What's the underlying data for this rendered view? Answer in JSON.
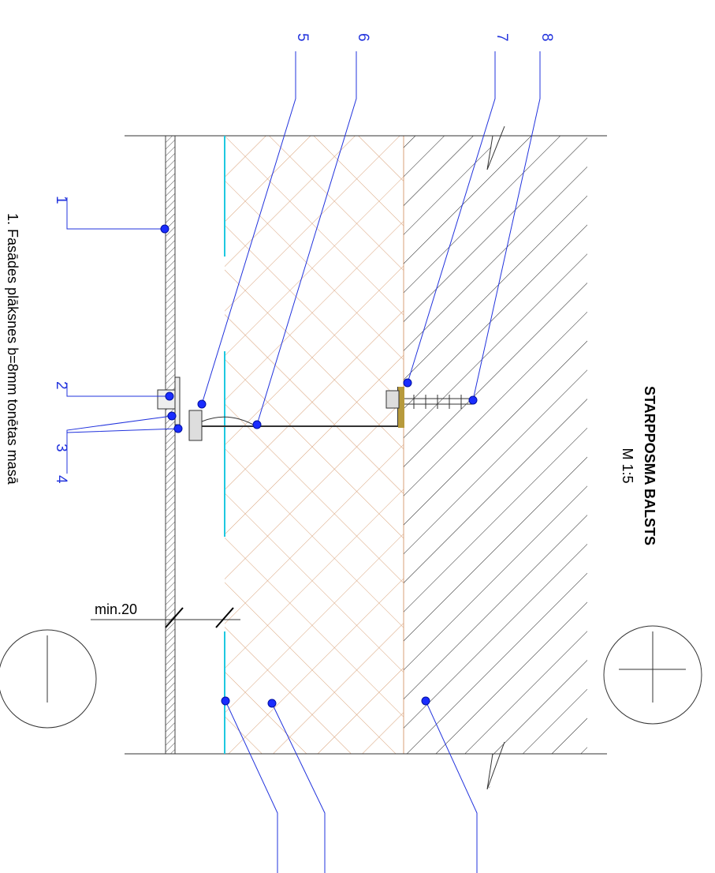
{
  "title": "STARPPOSMA BALSTS",
  "scale": "M 1:5",
  "dimension": "min.20",
  "note": "1. Fasādes plāksnes b=8mm tonētas masā",
  "callouts": [
    "1",
    "2",
    "3",
    "4",
    "5",
    "6",
    "7",
    "8"
  ]
}
